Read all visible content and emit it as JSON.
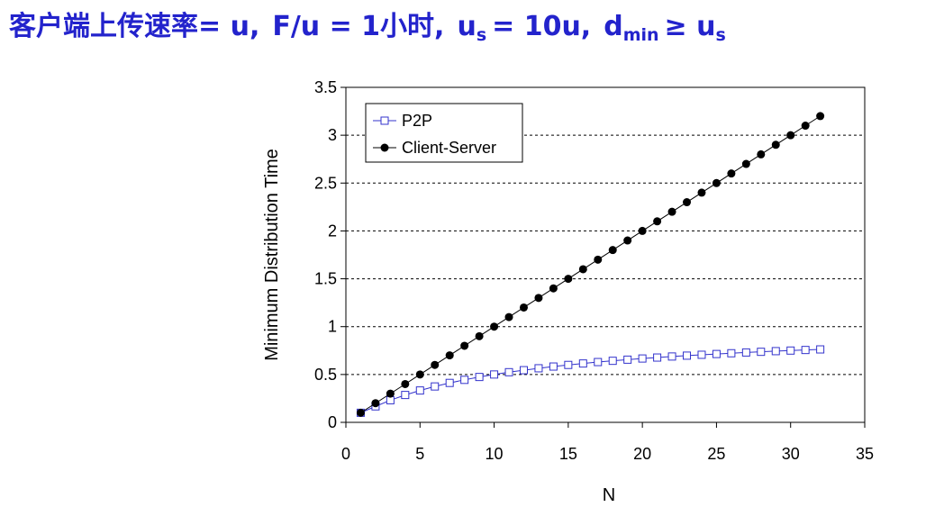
{
  "slide": {
    "title_prefix": "客户端上传速率= u,",
    "title_f": "F/u = 1小时,",
    "title_us": "u",
    "title_us_sub": "s",
    "title_us_val": "= 10u,",
    "title_d": "d",
    "title_d_sub": "min",
    "title_geq": "≥ u",
    "title_geq_sub": "s"
  },
  "chart_data": {
    "type": "line",
    "title": "",
    "xlabel": "N",
    "ylabel": "Minimum Distribution Time",
    "xlim": [
      0,
      35
    ],
    "ylim": [
      0,
      3.5
    ],
    "x_ticks": [
      0,
      5,
      10,
      15,
      20,
      25,
      30,
      35
    ],
    "y_ticks": [
      0,
      0.5,
      1,
      1.5,
      2,
      2.5,
      3,
      3.5
    ],
    "y_tick_labels": [
      "0",
      "0.5",
      "1",
      "1.5",
      "2",
      "2.5",
      "3",
      "3.5"
    ],
    "grid": "horizontal-dashed",
    "legend_position": "top-left",
    "x": [
      1,
      2,
      3,
      4,
      5,
      6,
      7,
      8,
      9,
      10,
      11,
      12,
      13,
      14,
      15,
      16,
      17,
      18,
      19,
      20,
      21,
      22,
      23,
      24,
      25,
      26,
      27,
      28,
      29,
      30,
      31,
      32
    ],
    "series": [
      {
        "name": "P2P",
        "color": "#3333cc",
        "marker": "open-square",
        "values": [
          0.1,
          0.167,
          0.231,
          0.286,
          0.333,
          0.375,
          0.412,
          0.444,
          0.474,
          0.5,
          0.524,
          0.545,
          0.565,
          0.583,
          0.6,
          0.615,
          0.63,
          0.643,
          0.655,
          0.667,
          0.677,
          0.688,
          0.697,
          0.706,
          0.714,
          0.722,
          0.73,
          0.737,
          0.744,
          0.75,
          0.756,
          0.762
        ]
      },
      {
        "name": "Client-Server",
        "color": "#000000",
        "marker": "filled-circle",
        "values": [
          0.1,
          0.2,
          0.3,
          0.4,
          0.5,
          0.6,
          0.7,
          0.8,
          0.9,
          1.0,
          1.1,
          1.2,
          1.3,
          1.4,
          1.5,
          1.6,
          1.7,
          1.8,
          1.9,
          2.0,
          2.1,
          2.2,
          2.3,
          2.4,
          2.5,
          2.6,
          2.7,
          2.8,
          2.9,
          3.0,
          3.1,
          3.2
        ]
      }
    ]
  }
}
